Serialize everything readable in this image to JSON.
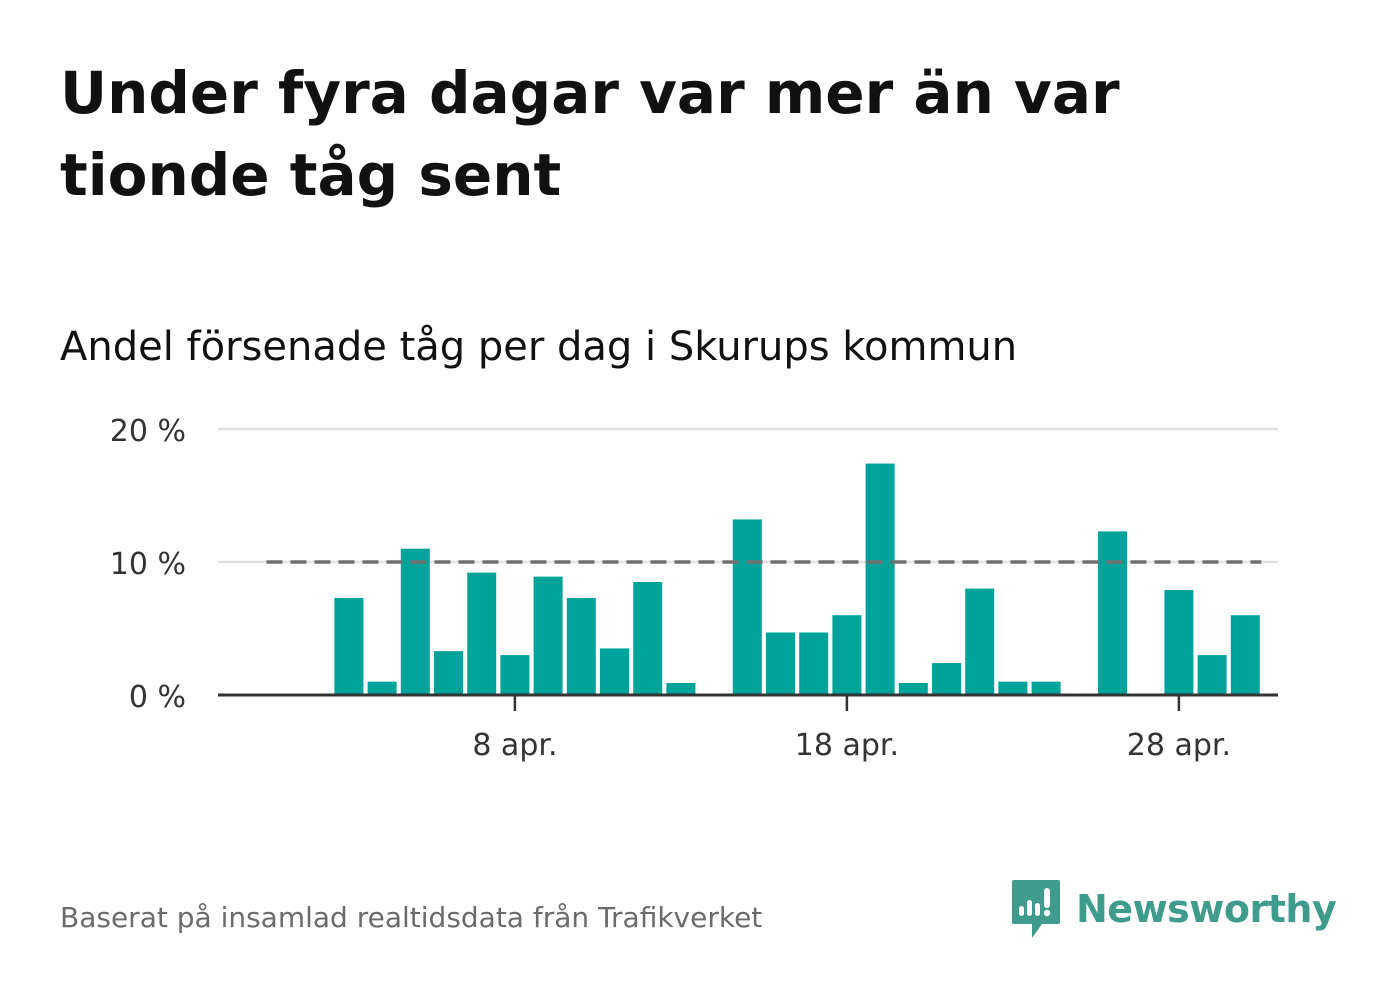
{
  "title": "Under fyra dagar var mer än var tionde tåg sent",
  "subtitle": "Andel försenade tåg per dag i Skurups kommun",
  "source": "Baserat på insamlad realtidsdata från Trafikverket",
  "brand": {
    "name": "Newsworthy",
    "icon": "newsworthy-logo-icon",
    "color": "#3f9c8d"
  },
  "chart_data": {
    "type": "bar",
    "title": "Under fyra dagar var mer än var tionde tåg sent",
    "subtitle": "Andel försenade tåg per dag i Skurups kommun",
    "xlabel": "",
    "ylabel": "",
    "x_unit": "day of April",
    "categories": [
      1,
      2,
      3,
      4,
      5,
      6,
      7,
      8,
      9,
      10,
      11,
      12,
      13,
      14,
      15,
      16,
      17,
      18,
      19,
      20,
      21,
      22,
      23,
      24,
      25,
      26,
      27,
      28,
      29,
      30
    ],
    "values": [
      null,
      null,
      7.3,
      1.0,
      11.0,
      3.3,
      9.2,
      3.0,
      8.9,
      7.3,
      3.5,
      8.5,
      0.9,
      null,
      13.2,
      4.7,
      4.7,
      6.0,
      17.4,
      0.9,
      2.4,
      8.0,
      1.0,
      1.0,
      null,
      12.3,
      null,
      7.9,
      3.0,
      6.0
    ],
    "ylim": [
      0,
      20
    ],
    "yticks": [
      0,
      10,
      20
    ],
    "ytick_labels": [
      "0 %",
      "10 %",
      "20 %"
    ],
    "xticks": [
      8,
      18,
      28
    ],
    "xtick_labels": [
      "8 apr.",
      "18 apr.",
      "28 apr."
    ],
    "reference_line": 10,
    "grid": true,
    "colors": {
      "bar": "#00a39a",
      "reference": "#707070",
      "grid": "#e0e0e0",
      "axis": "#333333"
    }
  }
}
